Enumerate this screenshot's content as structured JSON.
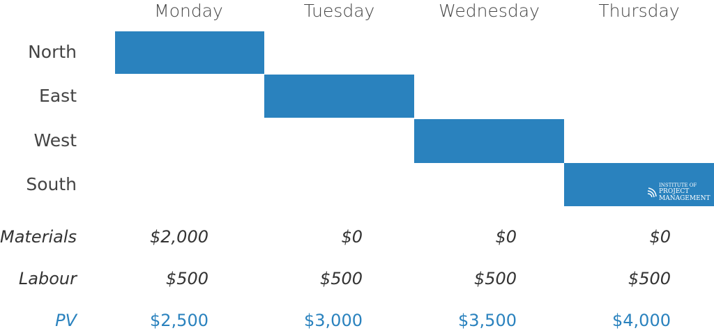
{
  "days": [
    "Monday",
    "Tuesday",
    "Wednesday",
    "Thursday"
  ],
  "regions": [
    "North",
    "East",
    "West",
    "South"
  ],
  "schedule": [
    {
      "region": "North",
      "day": "Monday"
    },
    {
      "region": "East",
      "day": "Tuesday"
    },
    {
      "region": "West",
      "day": "Wednesday"
    },
    {
      "region": "South",
      "day": "Thursday"
    }
  ],
  "bar_color": "#2a82be",
  "costs": {
    "materials": {
      "label": "Materials",
      "values": [
        "$2,000",
        "$0",
        "$0",
        "$0"
      ]
    },
    "labour": {
      "label": "Labour",
      "values": [
        "$500",
        "$500",
        "$500",
        "$500"
      ]
    },
    "pv": {
      "label": "PV",
      "values": [
        "$2,500",
        "$3,000",
        "$3,500",
        "$4,000"
      ],
      "color": "#2a82be"
    }
  },
  "logo": {
    "line1": "INSTITUTE OF",
    "line2": "PROJECT",
    "line3": "MANAGEMENT"
  }
}
